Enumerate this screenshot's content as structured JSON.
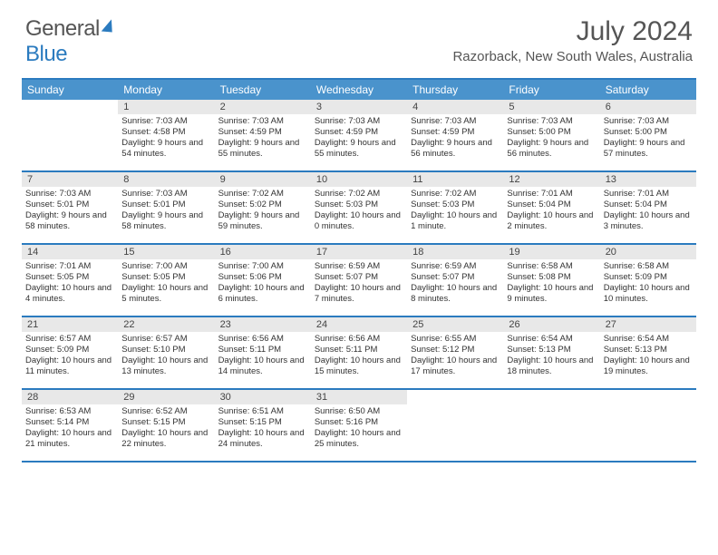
{
  "logo": {
    "text1": "General",
    "text2": "Blue"
  },
  "title": "July 2024",
  "location": "Razorback, New South Wales, Australia",
  "colors": {
    "accent": "#2b7bbf",
    "header_bg": "#4a93cc",
    "daynum_bg": "#e8e8e8",
    "text": "#555"
  },
  "weekdays": [
    "Sunday",
    "Monday",
    "Tuesday",
    "Wednesday",
    "Thursday",
    "Friday",
    "Saturday"
  ],
  "weeks": [
    [
      {
        "blank": true
      },
      {
        "n": "1",
        "sr": "7:03 AM",
        "ss": "4:58 PM",
        "dl": "9 hours and 54 minutes."
      },
      {
        "n": "2",
        "sr": "7:03 AM",
        "ss": "4:59 PM",
        "dl": "9 hours and 55 minutes."
      },
      {
        "n": "3",
        "sr": "7:03 AM",
        "ss": "4:59 PM",
        "dl": "9 hours and 55 minutes."
      },
      {
        "n": "4",
        "sr": "7:03 AM",
        "ss": "4:59 PM",
        "dl": "9 hours and 56 minutes."
      },
      {
        "n": "5",
        "sr": "7:03 AM",
        "ss": "5:00 PM",
        "dl": "9 hours and 56 minutes."
      },
      {
        "n": "6",
        "sr": "7:03 AM",
        "ss": "5:00 PM",
        "dl": "9 hours and 57 minutes."
      }
    ],
    [
      {
        "n": "7",
        "sr": "7:03 AM",
        "ss": "5:01 PM",
        "dl": "9 hours and 58 minutes."
      },
      {
        "n": "8",
        "sr": "7:03 AM",
        "ss": "5:01 PM",
        "dl": "9 hours and 58 minutes."
      },
      {
        "n": "9",
        "sr": "7:02 AM",
        "ss": "5:02 PM",
        "dl": "9 hours and 59 minutes."
      },
      {
        "n": "10",
        "sr": "7:02 AM",
        "ss": "5:03 PM",
        "dl": "10 hours and 0 minutes."
      },
      {
        "n": "11",
        "sr": "7:02 AM",
        "ss": "5:03 PM",
        "dl": "10 hours and 1 minute."
      },
      {
        "n": "12",
        "sr": "7:01 AM",
        "ss": "5:04 PM",
        "dl": "10 hours and 2 minutes."
      },
      {
        "n": "13",
        "sr": "7:01 AM",
        "ss": "5:04 PM",
        "dl": "10 hours and 3 minutes."
      }
    ],
    [
      {
        "n": "14",
        "sr": "7:01 AM",
        "ss": "5:05 PM",
        "dl": "10 hours and 4 minutes."
      },
      {
        "n": "15",
        "sr": "7:00 AM",
        "ss": "5:05 PM",
        "dl": "10 hours and 5 minutes."
      },
      {
        "n": "16",
        "sr": "7:00 AM",
        "ss": "5:06 PM",
        "dl": "10 hours and 6 minutes."
      },
      {
        "n": "17",
        "sr": "6:59 AM",
        "ss": "5:07 PM",
        "dl": "10 hours and 7 minutes."
      },
      {
        "n": "18",
        "sr": "6:59 AM",
        "ss": "5:07 PM",
        "dl": "10 hours and 8 minutes."
      },
      {
        "n": "19",
        "sr": "6:58 AM",
        "ss": "5:08 PM",
        "dl": "10 hours and 9 minutes."
      },
      {
        "n": "20",
        "sr": "6:58 AM",
        "ss": "5:09 PM",
        "dl": "10 hours and 10 minutes."
      }
    ],
    [
      {
        "n": "21",
        "sr": "6:57 AM",
        "ss": "5:09 PM",
        "dl": "10 hours and 11 minutes."
      },
      {
        "n": "22",
        "sr": "6:57 AM",
        "ss": "5:10 PM",
        "dl": "10 hours and 13 minutes."
      },
      {
        "n": "23",
        "sr": "6:56 AM",
        "ss": "5:11 PM",
        "dl": "10 hours and 14 minutes."
      },
      {
        "n": "24",
        "sr": "6:56 AM",
        "ss": "5:11 PM",
        "dl": "10 hours and 15 minutes."
      },
      {
        "n": "25",
        "sr": "6:55 AM",
        "ss": "5:12 PM",
        "dl": "10 hours and 17 minutes."
      },
      {
        "n": "26",
        "sr": "6:54 AM",
        "ss": "5:13 PM",
        "dl": "10 hours and 18 minutes."
      },
      {
        "n": "27",
        "sr": "6:54 AM",
        "ss": "5:13 PM",
        "dl": "10 hours and 19 minutes."
      }
    ],
    [
      {
        "n": "28",
        "sr": "6:53 AM",
        "ss": "5:14 PM",
        "dl": "10 hours and 21 minutes."
      },
      {
        "n": "29",
        "sr": "6:52 AM",
        "ss": "5:15 PM",
        "dl": "10 hours and 22 minutes."
      },
      {
        "n": "30",
        "sr": "6:51 AM",
        "ss": "5:15 PM",
        "dl": "10 hours and 24 minutes."
      },
      {
        "n": "31",
        "sr": "6:50 AM",
        "ss": "5:16 PM",
        "dl": "10 hours and 25 minutes."
      },
      {
        "blank": true
      },
      {
        "blank": true
      },
      {
        "blank": true
      }
    ]
  ],
  "labels": {
    "sunrise": "Sunrise:",
    "sunset": "Sunset:",
    "daylight": "Daylight:"
  }
}
